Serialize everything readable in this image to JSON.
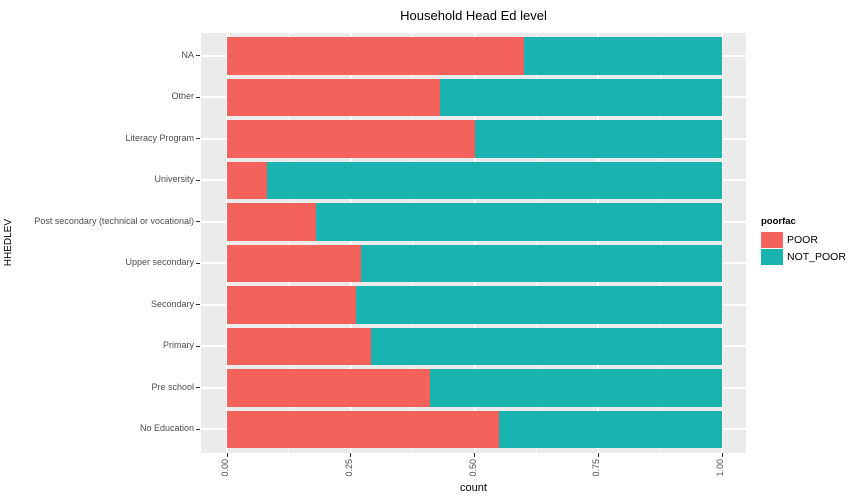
{
  "chart_data": {
    "type": "bar",
    "orientation": "horizontal",
    "stacking": "fill",
    "title": "Household Head Ed level",
    "xlabel": "count",
    "ylabel": "HHEDLEV",
    "xlim": [
      0,
      1
    ],
    "x_ticks": [
      "0.00",
      "0.25",
      "0.50",
      "0.75",
      "1.00"
    ],
    "x_tick_values": [
      0,
      0.25,
      0.5,
      0.75,
      1.0
    ],
    "x_minor_values": [
      0.125,
      0.375,
      0.625,
      0.875
    ],
    "grid": true,
    "legend_position": "right",
    "categories": [
      "NA",
      "Other",
      "Literacy Program",
      "University",
      "Post secondary (technical or vocational)",
      "Upper secondary",
      "Secondary",
      "Primary",
      "Pre school",
      "No Education"
    ],
    "series": [
      {
        "name": "POOR",
        "color": "#F3635C",
        "values": [
          0.6,
          0.43,
          0.5,
          0.08,
          0.18,
          0.27,
          0.26,
          0.29,
          0.41,
          0.55
        ]
      },
      {
        "name": "NOT_POOR",
        "color": "#1AB4B0",
        "values": [
          0.4,
          0.57,
          0.5,
          0.92,
          0.82,
          0.73,
          0.74,
          0.71,
          0.59,
          0.45
        ]
      }
    ]
  },
  "legend": {
    "title": "poorfac"
  },
  "colors": {
    "panel_background": "#EBEBEB",
    "gridline": "#FFFFFF",
    "tick_mark": "#333333",
    "tick_label": "#4D4D4D"
  }
}
